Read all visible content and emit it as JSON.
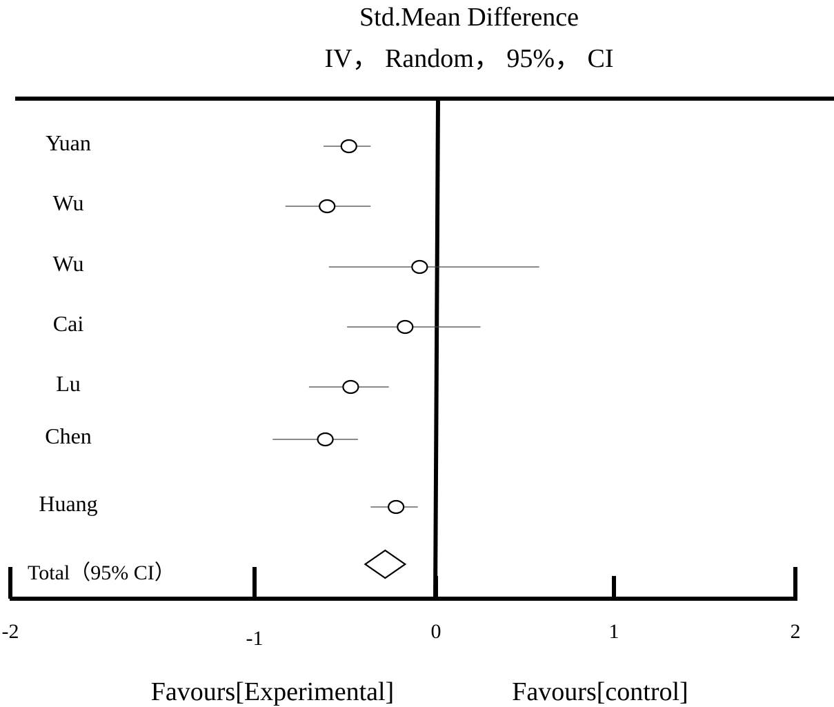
{
  "chart_data": {
    "type": "forest",
    "title": [
      "Std.Mean Difference",
      "IV， Random， 95%， CI"
    ],
    "xlim": [
      -2,
      2
    ],
    "x_ticks": [
      -2,
      -1,
      0,
      1,
      2
    ],
    "x_tick_labels": [
      "-2",
      "-1",
      "0",
      "1",
      "2"
    ],
    "xlabel_left": "Favours[Experimental]",
    "xlabel_right": "Favours[control]",
    "studies": [
      {
        "label": "Yuan",
        "estimate": -0.48,
        "ci_low": -0.62,
        "ci_high": -0.36
      },
      {
        "label": "Wu",
        "estimate": -0.6,
        "ci_low": -0.83,
        "ci_high": -0.36
      },
      {
        "label": "Wu",
        "estimate": -0.09,
        "ci_low": -0.59,
        "ci_high": 0.58
      },
      {
        "label": "Cai",
        "estimate": -0.17,
        "ci_low": -0.49,
        "ci_high": 0.25
      },
      {
        "label": "Lu",
        "estimate": -0.47,
        "ci_low": -0.7,
        "ci_high": -0.26
      },
      {
        "label": "Chen",
        "estimate": -0.61,
        "ci_low": -0.9,
        "ci_high": -0.43
      },
      {
        "label": "Huang",
        "estimate": -0.22,
        "ci_low": -0.36,
        "ci_high": -0.1
      }
    ],
    "total": {
      "label": "Total（95% CI）",
      "estimate": -0.28,
      "ci_low": -0.39,
      "ci_high": -0.17
    }
  }
}
